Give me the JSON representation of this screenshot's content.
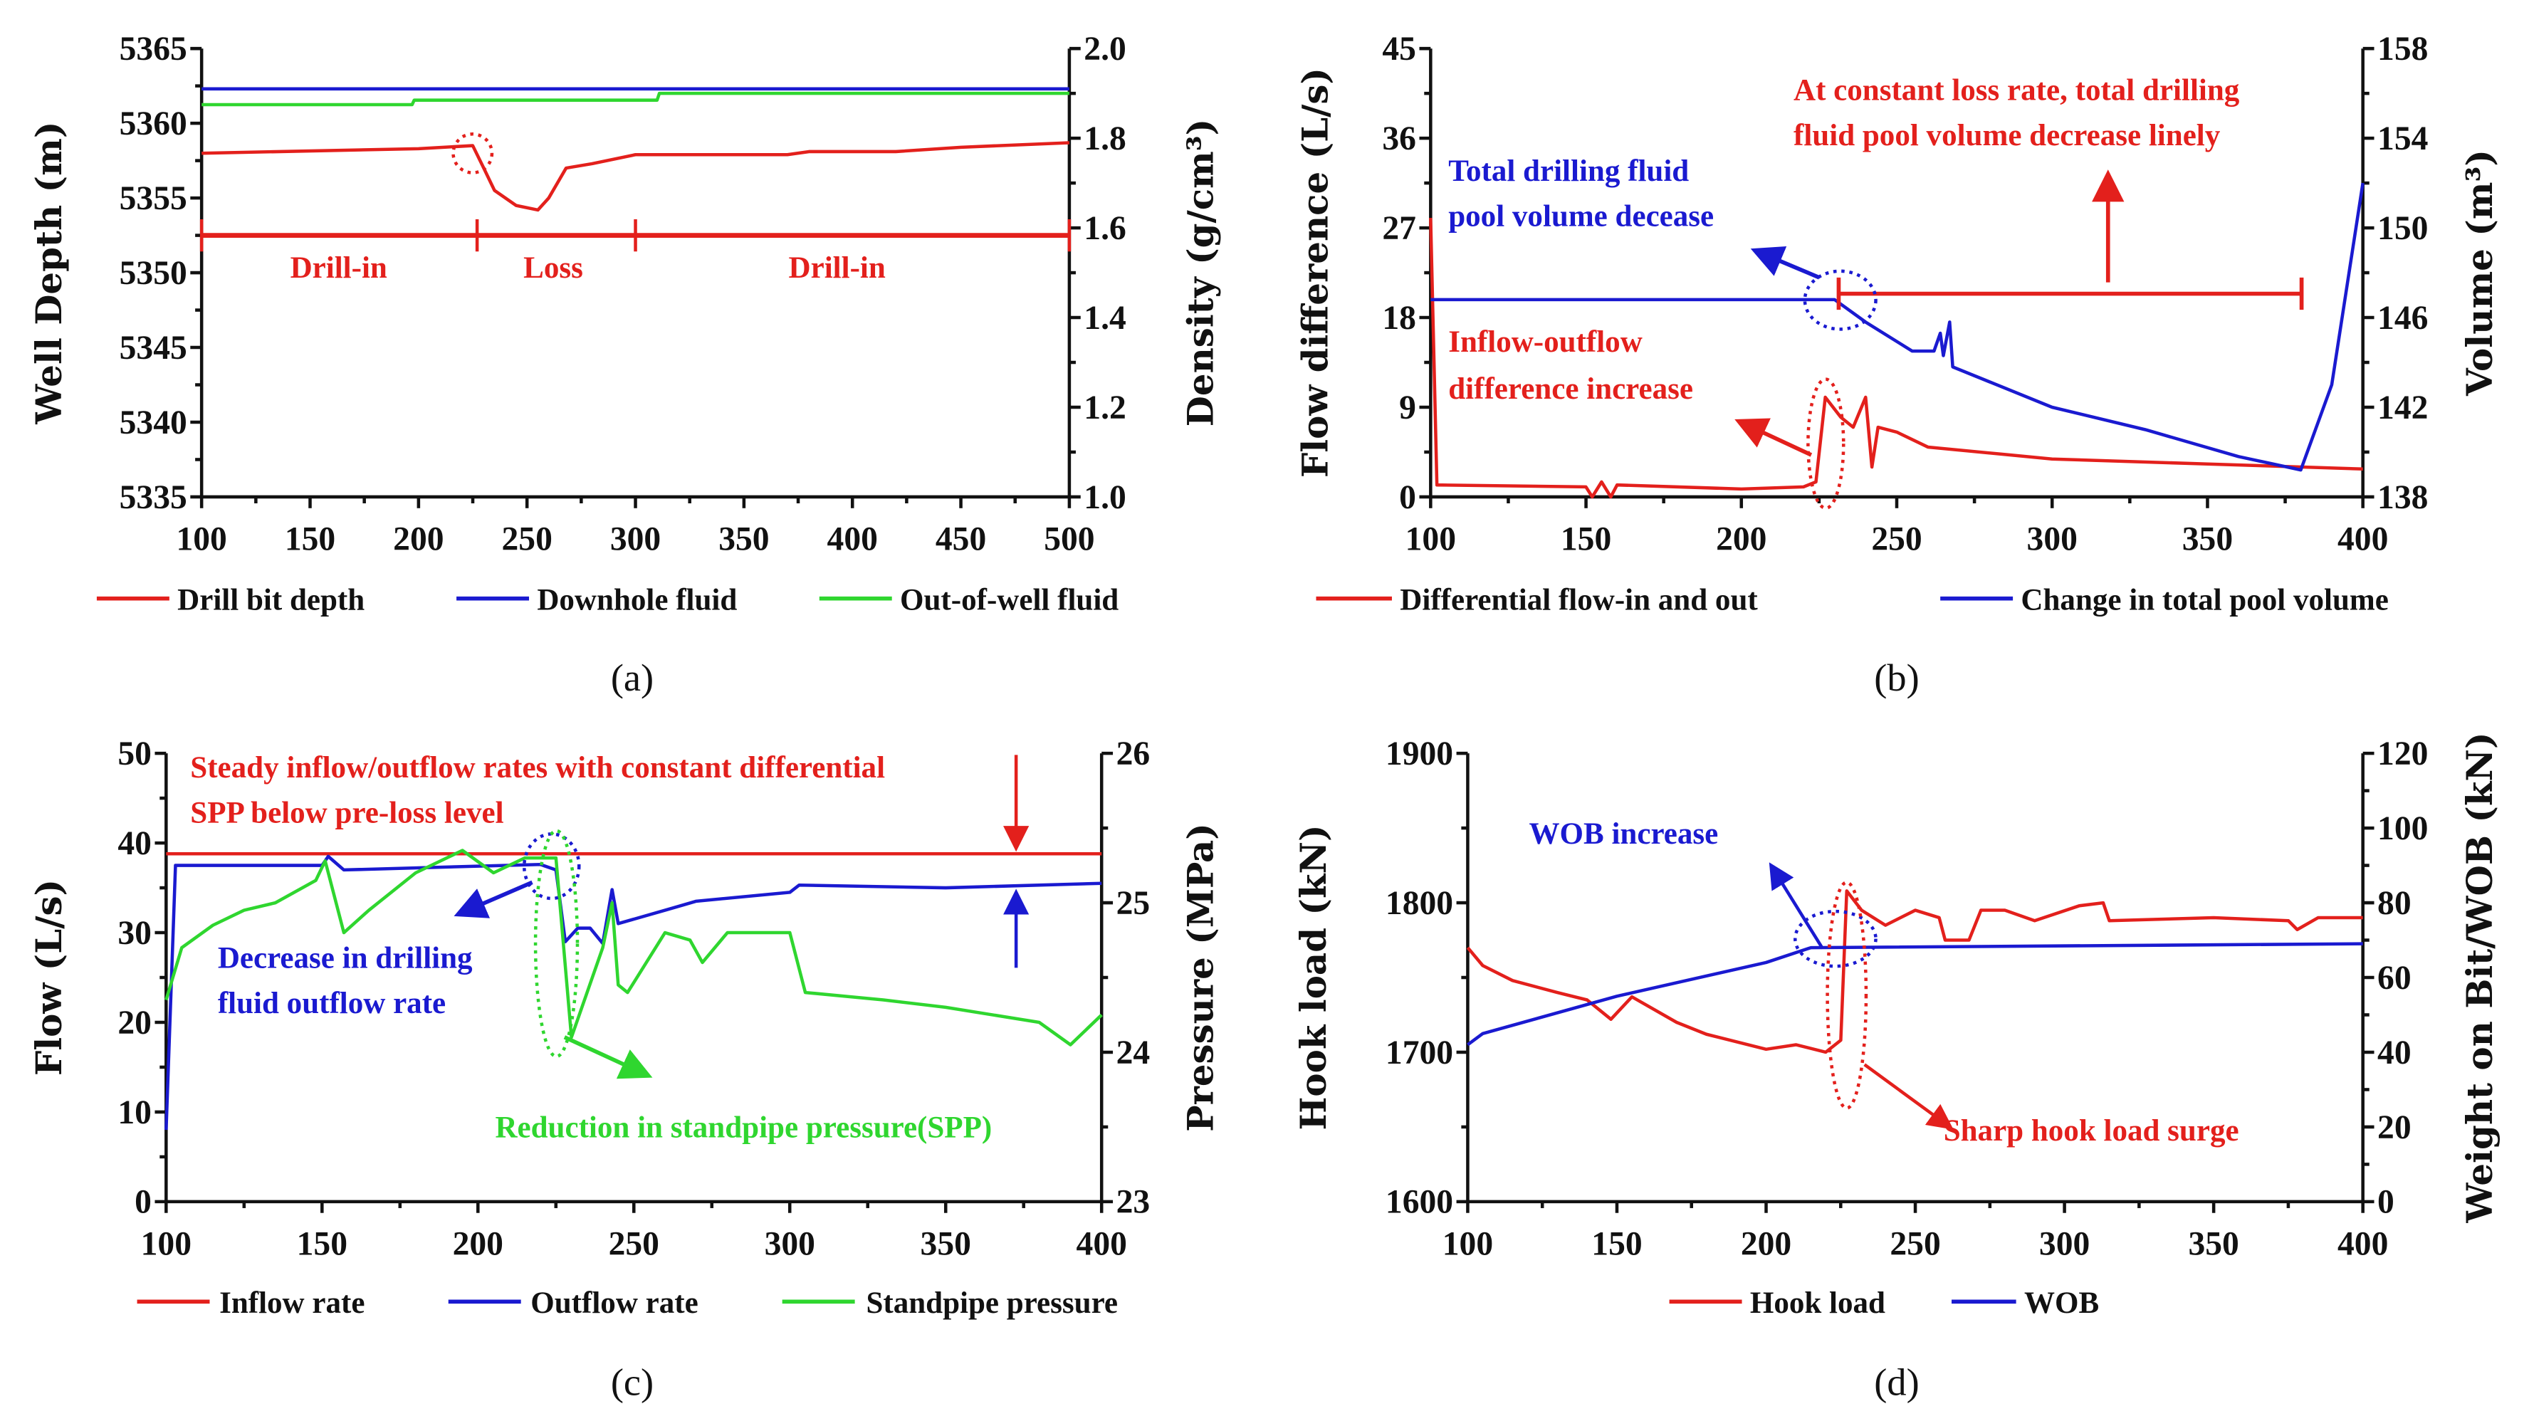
{
  "colors": {
    "red": "#e3201c",
    "blue": "#1a1ad0",
    "green": "#2fd62f"
  },
  "chart_data": [
    {
      "id": "a",
      "type": "line",
      "caption": "(a)",
      "xlabel": "",
      "ylabel": "Well Depth (m)",
      "y2label": "Density (g/cm³)",
      "xlim": [
        100,
        500
      ],
      "xticks": [
        100,
        150,
        200,
        250,
        300,
        350,
        400,
        450,
        500
      ],
      "ylim": [
        5335,
        5365
      ],
      "yticks": [
        5335,
        5340,
        5345,
        5350,
        5355,
        5360,
        5365
      ],
      "y2lim": [
        1.0,
        2.0
      ],
      "y2ticks": [
        "1.0",
        "1.2",
        "1.4",
        "1.6",
        "1.8",
        "2.0"
      ],
      "series": [
        {
          "name": "Drill bit depth",
          "color": "#e3201c",
          "axis": "y",
          "points": [
            [
              100,
              5358
            ],
            [
              200,
              5358.3
            ],
            [
              225,
              5358.5
            ],
            [
              230,
              5357
            ],
            [
              235,
              5355.5
            ],
            [
              245,
              5354.5
            ],
            [
              255,
              5354.2
            ],
            [
              260,
              5355
            ],
            [
              268,
              5357
            ],
            [
              280,
              5357.3
            ],
            [
              300,
              5357.9
            ],
            [
              370,
              5357.9
            ],
            [
              380,
              5358.1
            ],
            [
              420,
              5358.1
            ],
            [
              450,
              5358.4
            ],
            [
              500,
              5358.7
            ]
          ]
        },
        {
          "name": "Downhole fluid",
          "color": "#1a1ad0",
          "axis": "y2",
          "points": [
            [
              100,
              1.91
            ],
            [
              500,
              1.91
            ]
          ]
        },
        {
          "name": "Out-of-well fluid",
          "color": "#2fd62f",
          "axis": "y2",
          "points": [
            [
              100,
              1.875
            ],
            [
              197,
              1.875
            ],
            [
              198,
              1.885
            ],
            [
              310,
              1.885
            ],
            [
              311,
              1.9
            ],
            [
              500,
              1.9
            ]
          ]
        }
      ],
      "phases": {
        "boundaries": [
          100,
          227,
          300,
          500
        ],
        "level": 5352.5,
        "labels": [
          "Drill-in",
          "Loss",
          "Drill-in"
        ]
      }
    },
    {
      "id": "b",
      "type": "line",
      "caption": "(b)",
      "xlabel": "",
      "ylabel": "Flow difference (L/s)",
      "y2label": "Volume (m³)",
      "xlim": [
        100,
        400
      ],
      "xticks": [
        100,
        150,
        200,
        250,
        300,
        350,
        400
      ],
      "ylim": [
        0,
        45
      ],
      "yticks": [
        0,
        9,
        18,
        27,
        36,
        45
      ],
      "y2lim": [
        138,
        158
      ],
      "y2ticks": [
        "138",
        "142",
        "146",
        "150",
        "154",
        "158"
      ],
      "series": [
        {
          "name": "Differential flow-in and out",
          "color": "#e3201c",
          "axis": "y",
          "points": [
            [
              100,
              28
            ],
            [
              102,
              1.2
            ],
            [
              150,
              1.0
            ],
            [
              152,
              0
            ],
            [
              155,
              1.5
            ],
            [
              158,
              0
            ],
            [
              160,
              1.2
            ],
            [
              200,
              0.8
            ],
            [
              220,
              1
            ],
            [
              224,
              1.5
            ],
            [
              227,
              10
            ],
            [
              232,
              8
            ],
            [
              236,
              7
            ],
            [
              240,
              10
            ],
            [
              242,
              3
            ],
            [
              244,
              7
            ],
            [
              250,
              6.5
            ],
            [
              260,
              5
            ],
            [
              300,
              3.8
            ],
            [
              350,
              3.3
            ],
            [
              400,
              2.8
            ]
          ]
        },
        {
          "name": "Change in total pool volume",
          "color": "#1a1ad0",
          "axis": "y2",
          "points": [
            [
              100,
              146.8
            ],
            [
              230,
              146.8
            ],
            [
              240,
              145.8
            ],
            [
              255,
              144.5
            ],
            [
              262,
              144.5
            ],
            [
              264,
              145.3
            ],
            [
              265,
              144.3
            ],
            [
              267,
              145.8
            ],
            [
              268,
              143.8
            ],
            [
              300,
              142
            ],
            [
              330,
              141
            ],
            [
              360,
              139.8
            ],
            [
              380,
              139.2
            ],
            [
              390,
              143
            ],
            [
              400,
              152
            ]
          ]
        }
      ],
      "annotations": [
        [
          "At constant loss rate, total drilling",
          "fluid pool volume decrease linely"
        ],
        [
          "Total drilling fluid",
          "pool volume decease"
        ],
        [
          "Inflow-outflow",
          "difference increase"
        ]
      ]
    },
    {
      "id": "c",
      "type": "line",
      "caption": "(c)",
      "xlabel": "",
      "ylabel": "Flow (L/s)",
      "y2label": "Pressure (MPa)",
      "xlim": [
        100,
        400
      ],
      "xticks": [
        100,
        150,
        200,
        250,
        300,
        350,
        400
      ],
      "ylim": [
        0,
        50
      ],
      "yticks": [
        0,
        10,
        20,
        30,
        40,
        50
      ],
      "y2lim": [
        23,
        26
      ],
      "y2ticks": [
        "23",
        "24",
        "25",
        "26"
      ],
      "series": [
        {
          "name": "Inflow rate",
          "color": "#e3201c",
          "axis": "y",
          "points": [
            [
              100,
              38.8
            ],
            [
              400,
              38.8
            ]
          ]
        },
        {
          "name": "Outflow rate",
          "color": "#1a1ad0",
          "axis": "y",
          "points": [
            [
              100,
              8
            ],
            [
              103,
              37.5
            ],
            [
              150,
              37.5
            ],
            [
              152,
              38.5
            ],
            [
              157,
              37
            ],
            [
              220,
              37.6
            ],
            [
              225,
              37
            ],
            [
              228,
              29
            ],
            [
              232,
              30.5
            ],
            [
              236,
              30.5
            ],
            [
              240,
              28.8
            ],
            [
              243,
              34.8
            ],
            [
              245,
              31
            ],
            [
              260,
              32.5
            ],
            [
              270,
              33.5
            ],
            [
              300,
              34.5
            ],
            [
              303,
              35.3
            ],
            [
              350,
              35
            ],
            [
              400,
              35.5
            ]
          ]
        },
        {
          "name": "Standpipe pressure",
          "color": "#2fd62f",
          "axis": "y2",
          "points": [
            [
              100,
              24.35
            ],
            [
              105,
              24.7
            ],
            [
              115,
              24.85
            ],
            [
              125,
              24.95
            ],
            [
              135,
              25.0
            ],
            [
              148,
              25.15
            ],
            [
              151,
              25.28
            ],
            [
              157,
              24.8
            ],
            [
              165,
              24.95
            ],
            [
              180,
              25.2
            ],
            [
              195,
              25.35
            ],
            [
              205,
              25.2
            ],
            [
              215,
              25.3
            ],
            [
              225,
              25.3
            ],
            [
              230,
              24.1
            ],
            [
              240,
              24.7
            ],
            [
              243,
              25.0
            ],
            [
              245,
              24.45
            ],
            [
              248,
              24.4
            ],
            [
              260,
              24.8
            ],
            [
              268,
              24.75
            ],
            [
              272,
              24.6
            ],
            [
              280,
              24.8
            ],
            [
              300,
              24.8
            ],
            [
              305,
              24.4
            ],
            [
              330,
              24.35
            ],
            [
              350,
              24.3
            ],
            [
              380,
              24.2
            ],
            [
              390,
              24.05
            ],
            [
              400,
              24.25
            ]
          ]
        }
      ],
      "annotations": [
        [
          "Steady inflow/outflow rates with constant differential",
          "SPP below pre-loss level"
        ],
        [
          "Decrease in drilling",
          "fluid outflow rate"
        ],
        [
          "Reduction in standpipe pressure(SPP)"
        ]
      ]
    },
    {
      "id": "d",
      "type": "line",
      "caption": "(d)",
      "xlabel": "",
      "ylabel": "Hook load (kN)",
      "y2label": "Weight on Bit/WOB (kN)",
      "xlim": [
        100,
        400
      ],
      "xticks": [
        100,
        150,
        200,
        250,
        300,
        350,
        400
      ],
      "ylim": [
        1600,
        1900
      ],
      "yticks": [
        1600,
        1700,
        1800,
        1900
      ],
      "y2lim": [
        0,
        120
      ],
      "y2ticks": [
        "0",
        "20",
        "40",
        "60",
        "80",
        "100",
        "120"
      ],
      "series": [
        {
          "name": "Hook load",
          "color": "#e3201c",
          "axis": "y",
          "points": [
            [
              100,
              1770
            ],
            [
              105,
              1758
            ],
            [
              115,
              1748
            ],
            [
              130,
              1740
            ],
            [
              140,
              1735
            ],
            [
              148,
              1722
            ],
            [
              155,
              1737
            ],
            [
              170,
              1720
            ],
            [
              180,
              1712
            ],
            [
              200,
              1702
            ],
            [
              210,
              1705
            ],
            [
              220,
              1700
            ],
            [
              225,
              1708
            ],
            [
              227,
              1808
            ],
            [
              232,
              1795
            ],
            [
              240,
              1785
            ],
            [
              250,
              1795
            ],
            [
              258,
              1790
            ],
            [
              260,
              1775
            ],
            [
              268,
              1775
            ],
            [
              272,
              1795
            ],
            [
              280,
              1795
            ],
            [
              290,
              1788
            ],
            [
              305,
              1798
            ],
            [
              313,
              1800
            ],
            [
              315,
              1788
            ],
            [
              350,
              1790
            ],
            [
              375,
              1788
            ],
            [
              378,
              1782
            ],
            [
              385,
              1790
            ],
            [
              400,
              1790
            ]
          ]
        },
        {
          "name": "WOB",
          "color": "#1a1ad0",
          "axis": "y2",
          "points": [
            [
              100,
              42
            ],
            [
              105,
              45
            ],
            [
              150,
              55
            ],
            [
              200,
              64
            ],
            [
              215,
              68
            ],
            [
              400,
              69
            ]
          ]
        }
      ],
      "annotations": [
        [
          "WOB increase"
        ],
        [
          "Sharp hook load surge"
        ]
      ]
    }
  ]
}
